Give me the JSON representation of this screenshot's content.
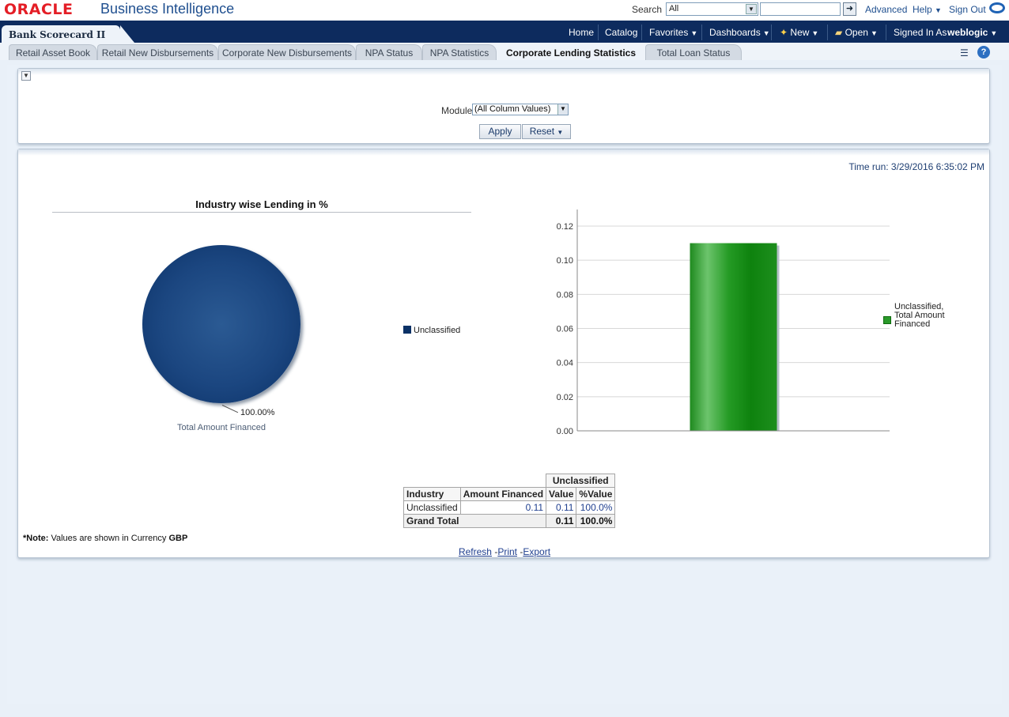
{
  "header": {
    "logo": "ORACLE",
    "product": "Business Intelligence",
    "search_label": "Search",
    "search_scope": "All",
    "search_value": "",
    "advanced": "Advanced",
    "help": "Help",
    "sign_out": "Sign Out"
  },
  "navbar": {
    "dashboard_title": "Bank Scorecard II",
    "home": "Home",
    "catalog": "Catalog",
    "favorites": "Favorites",
    "dashboards": "Dashboards",
    "new": "New",
    "open": "Open",
    "signed_in_as": "Signed In As",
    "user": "weblogic"
  },
  "tabs": [
    {
      "label": "Retail Asset Book",
      "active": false
    },
    {
      "label": "Retail New Disbursements",
      "active": false
    },
    {
      "label": "Corporate New Disbursements",
      "active": false
    },
    {
      "label": "NPA Status",
      "active": false
    },
    {
      "label": "NPA Statistics",
      "active": false
    },
    {
      "label": "Corporate Lending Statistics",
      "active": true
    },
    {
      "label": "Total Loan Status",
      "active": false
    }
  ],
  "prompt": {
    "module_label": "Module",
    "module_value": "(All Column Values)",
    "apply": "Apply",
    "reset": "Reset"
  },
  "report": {
    "time_run": "Time run: 3/29/2016 6:35:02 PM",
    "note_prefix": "*Note:",
    "note_text": " Values are shown in Currency ",
    "note_currency": "GBP",
    "refresh": "Refresh",
    "print": "Print",
    "export": "Export"
  },
  "colors": {
    "navy": "#0d2b5e",
    "pie": "#0b3166",
    "bar": "#2a9a2a",
    "link": "#1f3f8f"
  },
  "chart_data": [
    {
      "type": "pie",
      "title": "Industry wise Lending in %",
      "xlabel": "Total Amount Financed",
      "slices": [
        {
          "label": "Unclassified",
          "value": 100.0,
          "display": "100.00%"
        }
      ],
      "legend": [
        "Unclassified"
      ]
    },
    {
      "type": "bar",
      "categories": [
        ""
      ],
      "series": [
        {
          "name": "Unclassified, Total Amount Financed",
          "values": [
            0.11
          ]
        }
      ],
      "ylim": [
        0,
        0.12
      ],
      "yticks": [
        "0.00",
        "0.02",
        "0.04",
        "0.06",
        "0.08",
        "0.10",
        "0.12"
      ],
      "grid": true,
      "legend_position": "right"
    }
  ],
  "table": {
    "group_header": "Unclassified",
    "headers": [
      "Industry",
      "Amount Financed",
      "Value",
      "%Value"
    ],
    "rows": [
      {
        "industry": "Unclassified",
        "amount": "0.11",
        "value": "0.11",
        "pct": "100.0%"
      }
    ],
    "total": {
      "label": "Grand Total",
      "value": "0.11",
      "pct": "100.0%"
    }
  }
}
